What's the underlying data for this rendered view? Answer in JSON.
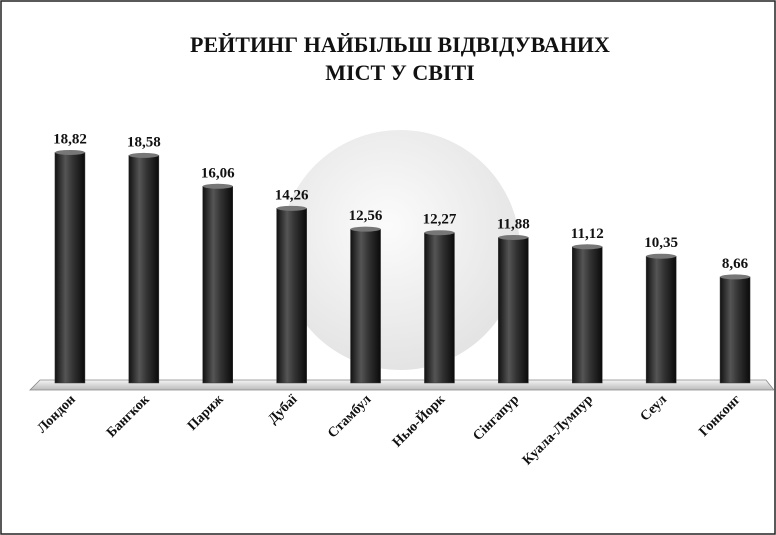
{
  "chart_data": {
    "type": "bar",
    "title": [
      "РЕЙТИНГ НАЙБІЛЬШ ВІДВІДУВАНИХ",
      "МІСТ У СВІТІ"
    ],
    "categories": [
      "Лондон",
      "Бангкок",
      "Париж",
      "Дубаї",
      "Стамбул",
      "Нью-Йорк",
      "Сінгапур",
      "Куала-Лумпур",
      "Сеул",
      "Гонконг"
    ],
    "values": [
      18.82,
      18.58,
      16.06,
      14.26,
      12.56,
      12.27,
      11.88,
      11.12,
      10.35,
      8.66
    ],
    "value_labels": [
      "18,82",
      "18,58",
      "16,06",
      "14,26",
      "12,56",
      "12,27",
      "11,88",
      "11,12",
      "10,35",
      "8,66"
    ],
    "color": "#3a3a3a",
    "ylim": [
      0,
      20
    ]
  }
}
